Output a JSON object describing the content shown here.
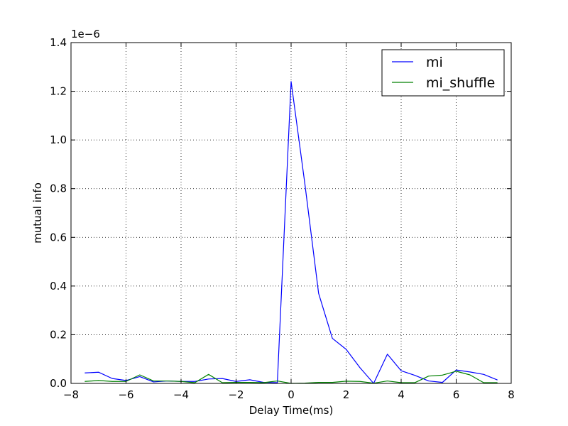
{
  "chart_data": {
    "type": "line",
    "xlabel": "Delay Time(ms)",
    "ylabel": "mutual info",
    "offset_label": "1e−6",
    "xlim": [
      -8,
      8
    ],
    "ylim": [
      0,
      1.4
    ],
    "xticks": [
      -8,
      -6,
      -4,
      -2,
      0,
      2,
      4,
      6,
      8
    ],
    "xtick_labels": [
      "−8",
      "−6",
      "−4",
      "−2",
      "0",
      "2",
      "4",
      "6",
      "8"
    ],
    "yticks": [
      0.0,
      0.2,
      0.4,
      0.6,
      0.8,
      1.0,
      1.2,
      1.4
    ],
    "ytick_labels": [
      "0.0",
      "0.2",
      "0.4",
      "0.6",
      "0.8",
      "1.0",
      "1.2",
      "1.4"
    ],
    "grid": true,
    "legend_position": "top-right",
    "x": [
      -7.5,
      -7.0,
      -6.5,
      -6.0,
      -5.5,
      -5.0,
      -4.5,
      -4.0,
      -3.5,
      -3.0,
      -2.5,
      -2.0,
      -1.5,
      -1.0,
      -0.5,
      0.0,
      0.5,
      1.0,
      1.5,
      2.0,
      2.5,
      3.0,
      3.5,
      4.0,
      4.5,
      5.0,
      5.5,
      6.0,
      6.5,
      7.0,
      7.5
    ],
    "series": [
      {
        "name": "mi",
        "color": "#0000ff",
        "values": [
          0.043,
          0.046,
          0.02,
          0.012,
          0.028,
          0.006,
          0.01,
          0.008,
          0.008,
          0.018,
          0.02,
          0.008,
          0.015,
          0.004,
          0.003,
          1.24,
          0.82,
          0.37,
          0.185,
          0.14,
          0.065,
          0.0,
          0.12,
          0.052,
          0.033,
          0.01,
          0.004,
          0.055,
          0.047,
          0.037,
          0.014
        ]
      },
      {
        "name": "mi_shuffle",
        "color": "#008000",
        "values": [
          0.008,
          0.012,
          0.008,
          0.008,
          0.035,
          0.01,
          0.01,
          0.008,
          0.003,
          0.037,
          0.003,
          0.004,
          0.004,
          0.003,
          0.01,
          0.0,
          0.001,
          0.004,
          0.004,
          0.009,
          0.008,
          0.001,
          0.01,
          0.003,
          0.003,
          0.03,
          0.034,
          0.05,
          0.035,
          0.003,
          0.003
        ]
      }
    ]
  }
}
